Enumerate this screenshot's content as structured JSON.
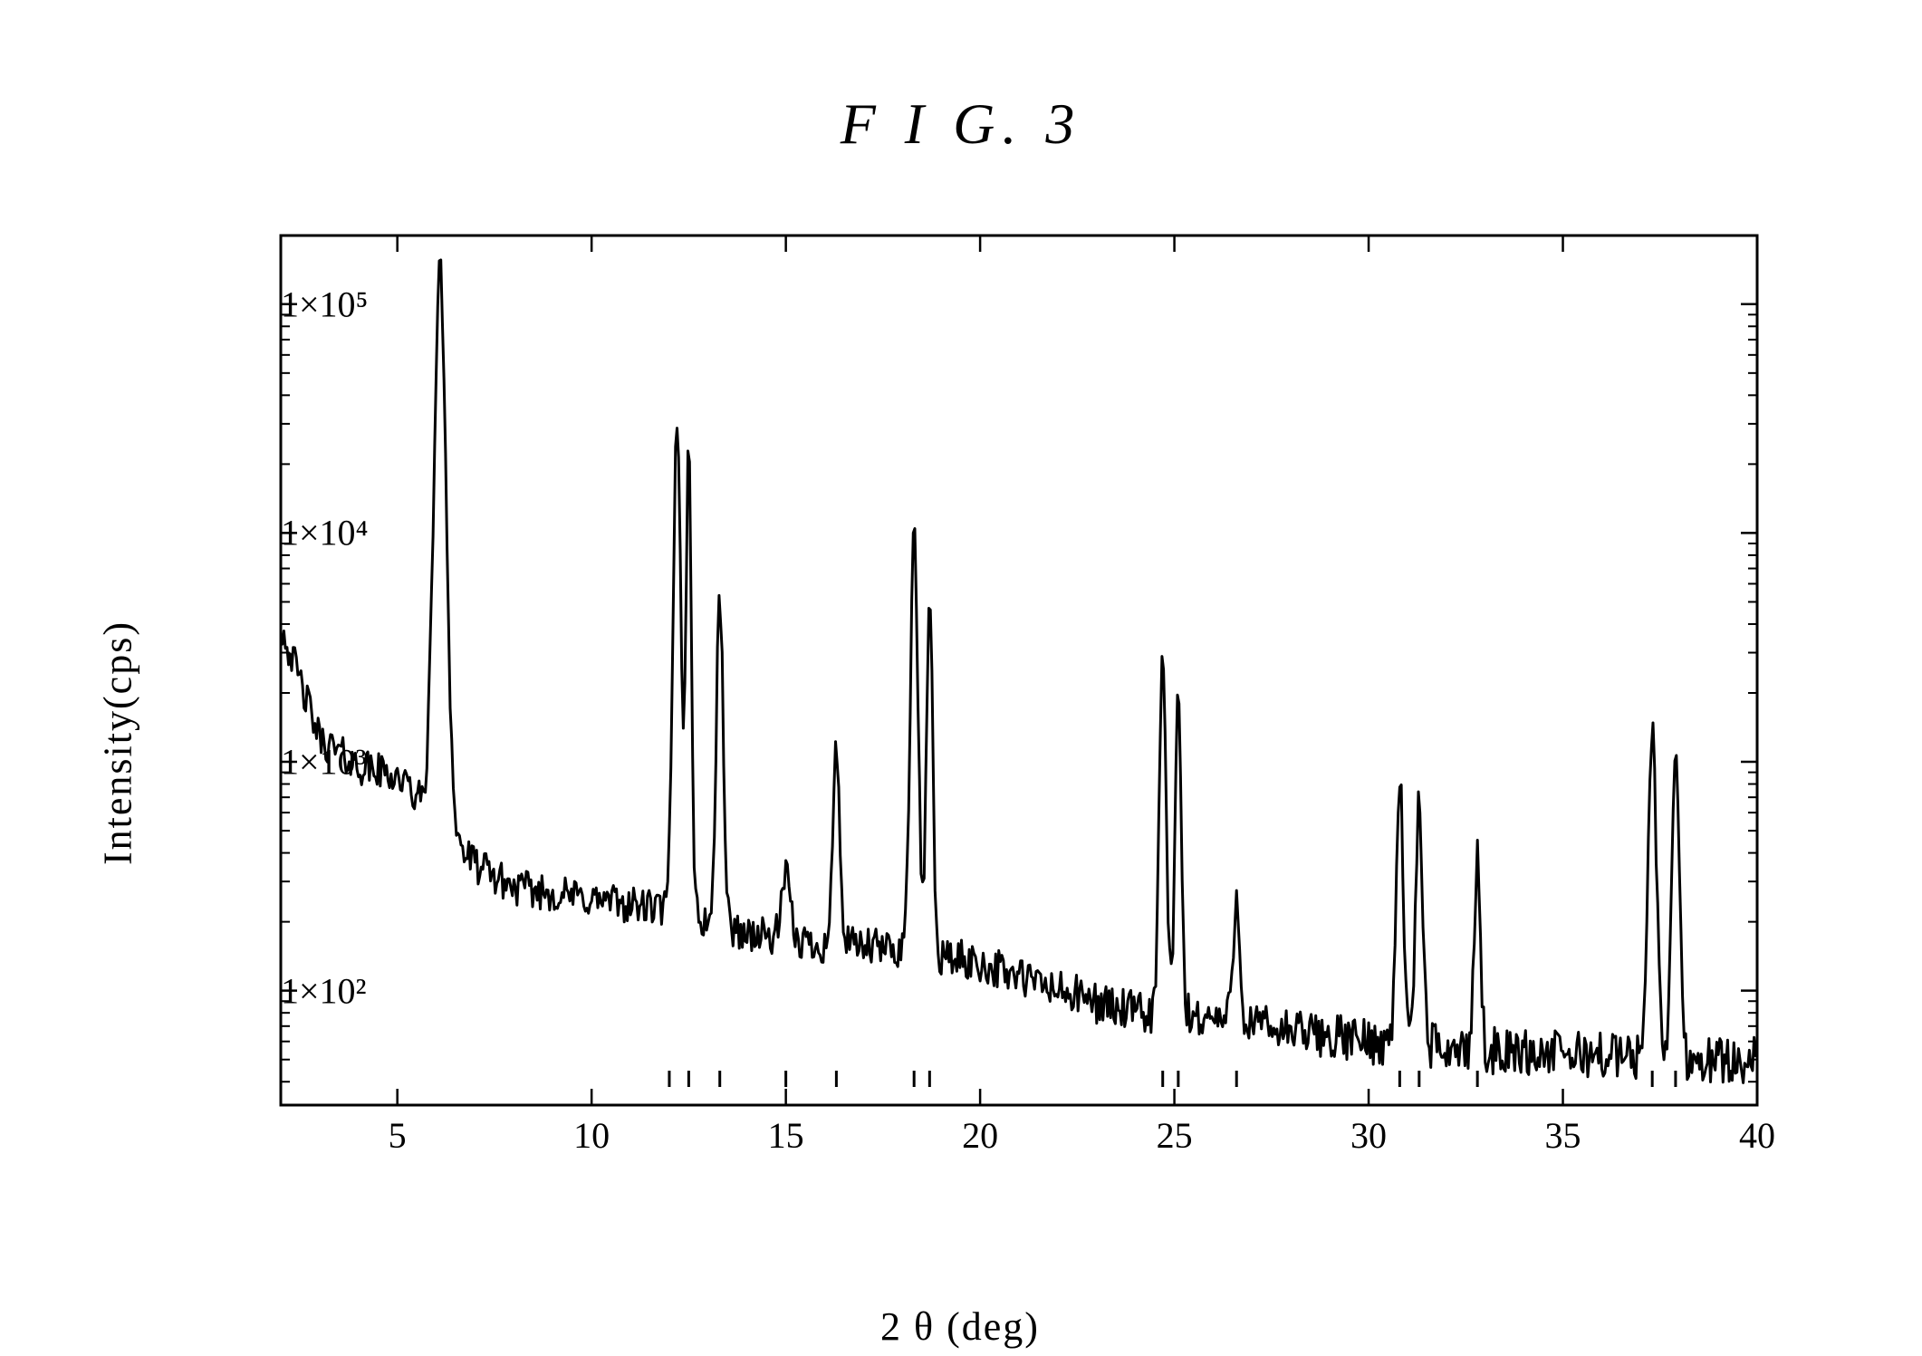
{
  "figure_title": "F I G. 3",
  "chart": {
    "type": "line",
    "xlabel": "2 θ (deg)",
    "ylabel": "Intensity(cps)",
    "x_scale": "linear",
    "y_scale": "log",
    "xlim": [
      2,
      40
    ],
    "ylim_log": [
      1.5,
      5.3
    ],
    "xtick_step": 5,
    "xticks": [
      5,
      10,
      15,
      20,
      25,
      30,
      35,
      40
    ],
    "yticks_log": [
      2,
      3,
      4,
      5
    ],
    "ytick_labels": [
      "1×10²",
      "1×10³",
      "1×10⁴",
      "1×10⁵"
    ],
    "line_color": "#000000",
    "line_width": 3,
    "background_color": "#ffffff",
    "axis_color": "#000000",
    "axis_width": 3,
    "noise_amp_log": 0.08,
    "baseline_points": [
      [
        2,
        3.6
      ],
      [
        3,
        3.1
      ],
      [
        4,
        2.98
      ],
      [
        5,
        2.94
      ],
      [
        7,
        2.55
      ],
      [
        8,
        2.45
      ],
      [
        10,
        2.4
      ],
      [
        12,
        2.35
      ],
      [
        14,
        2.25
      ],
      [
        16,
        2.2
      ],
      [
        18,
        2.18
      ],
      [
        20,
        2.12
      ],
      [
        22,
        2.0
      ],
      [
        24,
        1.9
      ],
      [
        26,
        1.88
      ],
      [
        28,
        1.82
      ],
      [
        30,
        1.78
      ],
      [
        32,
        1.75
      ],
      [
        34,
        1.73
      ],
      [
        36,
        1.72
      ],
      [
        38,
        1.7
      ],
      [
        40,
        1.7
      ]
    ],
    "peaks": [
      {
        "x": 6.1,
        "height_log": 5.15,
        "width": 0.45
      },
      {
        "x": 12.2,
        "height_log": 4.5,
        "width": 0.28
      },
      {
        "x": 12.5,
        "height_log": 4.35,
        "width": 0.2
      },
      {
        "x": 13.3,
        "height_log": 3.72,
        "width": 0.25
      },
      {
        "x": 15.0,
        "height_log": 2.5,
        "width": 0.3
      },
      {
        "x": 16.3,
        "height_log": 3.05,
        "width": 0.25
      },
      {
        "x": 18.3,
        "height_log": 4.0,
        "width": 0.28
      },
      {
        "x": 18.7,
        "height_log": 3.75,
        "width": 0.22
      },
      {
        "x": 24.7,
        "height_log": 3.45,
        "width": 0.25
      },
      {
        "x": 25.1,
        "height_log": 3.3,
        "width": 0.22
      },
      {
        "x": 26.6,
        "height_log": 2.4,
        "width": 0.25
      },
      {
        "x": 30.8,
        "height_log": 2.95,
        "width": 0.25
      },
      {
        "x": 31.3,
        "height_log": 2.82,
        "width": 0.25
      },
      {
        "x": 32.8,
        "height_log": 2.58,
        "width": 0.22
      },
      {
        "x": 37.3,
        "height_log": 3.15,
        "width": 0.3
      },
      {
        "x": 37.9,
        "height_log": 3.05,
        "width": 0.28
      }
    ],
    "tick_marks_x_inner": [
      12,
      12.5,
      13.3,
      15,
      16.3,
      18.3,
      18.7,
      24.7,
      25.1,
      26.6,
      30.8,
      31.3,
      32.8,
      37.3,
      37.9
    ]
  }
}
